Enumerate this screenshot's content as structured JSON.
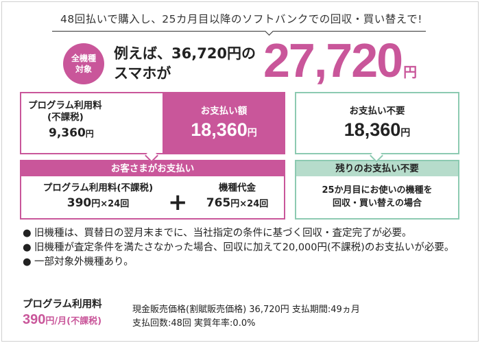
{
  "headline": "48回払いで購入し、25カ月目以降のソフトバンクでの回収・買い替えで!",
  "badge": {
    "line1": "全機種",
    "line2": "対象"
  },
  "hero": {
    "line1": "例えば、36,720円の",
    "line2": "スマホが",
    "price": "27,720",
    "price_unit": "円"
  },
  "payment": {
    "program_label": "プログラム利用料",
    "program_paren": "(不課税)",
    "program_value": "9,360",
    "yen": "円",
    "pay_label": "お支払い額",
    "pay_value": "18,360"
  },
  "customer": {
    "header": "お客さまがお支払い",
    "item1_label": "プログラム利用料(不課税)",
    "item1_amount": "390",
    "item1_mult": "円×24回",
    "plus": "+",
    "item2_label": "機種代金",
    "item2_amount": "765",
    "item2_mult": "円×24回"
  },
  "no_payment": {
    "label": "お支払い不要",
    "value": "18,360",
    "yen": "円",
    "remaining_header": "残りのお支払い不要",
    "remaining_line1": "25か月目にお使いの機種を",
    "remaining_line2": "回収・買い替えの場合"
  },
  "notes": [
    {
      "bullet": "●",
      "text": "旧機種は、買替日の翌月末までに、当社指定の条件に基づく回収・査定完了が必要。"
    },
    {
      "bullet": "●",
      "text": "旧機種が査定条件を満たさなかった場合、回収に加えて20,000円(不課税)のお支払いが必要。"
    },
    {
      "bullet": "●",
      "text": "一部対象外機種あり。"
    }
  ],
  "footer": {
    "program_label": "プログラム利用料",
    "program_amount": "390",
    "program_unit": "円/月(不課税)",
    "line1": "現金販売価格(割賦販売価格) 36,720円 支払期間:49ヵ月",
    "line2": "支払回数:48回 実質年率:0.0%"
  },
  "colors": {
    "magenta": "#c9569a",
    "mint_border": "#8ccab1",
    "mint_fill": "#b6dccb"
  }
}
